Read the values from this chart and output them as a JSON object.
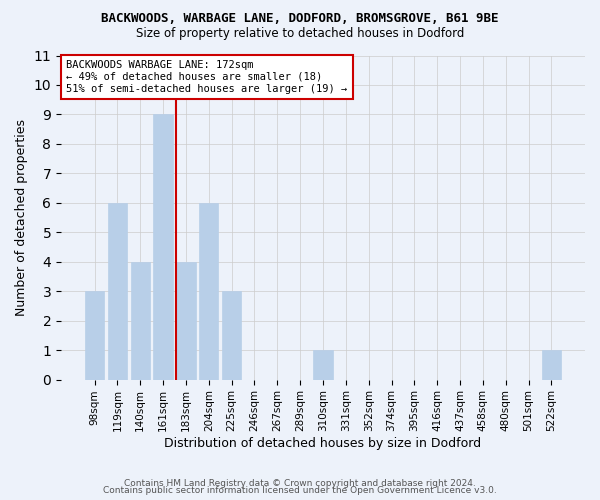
{
  "title_line1": "BACKWOODS, WARBAGE LANE, DODFORD, BROMSGROVE, B61 9BE",
  "title_line2": "Size of property relative to detached houses in Dodford",
  "xlabel": "Distribution of detached houses by size in Dodford",
  "ylabel": "Number of detached properties",
  "categories": [
    "98sqm",
    "119sqm",
    "140sqm",
    "161sqm",
    "183sqm",
    "204sqm",
    "225sqm",
    "246sqm",
    "267sqm",
    "289sqm",
    "310sqm",
    "331sqm",
    "352sqm",
    "374sqm",
    "395sqm",
    "416sqm",
    "437sqm",
    "458sqm",
    "480sqm",
    "501sqm",
    "522sqm"
  ],
  "values": [
    3,
    6,
    4,
    9,
    4,
    6,
    3,
    0,
    0,
    0,
    1,
    0,
    0,
    0,
    0,
    0,
    0,
    0,
    0,
    0,
    1
  ],
  "bar_color": "#b8cfe8",
  "bar_edge_color": "#b8cfe8",
  "property_line_x": 3.55,
  "property_line_color": "#cc0000",
  "annotation_text": "BACKWOODS WARBAGE LANE: 172sqm\n← 49% of detached houses are smaller (18)\n51% of semi-detached houses are larger (19) →",
  "annotation_box_color": "#ffffff",
  "annotation_box_edge": "#cc0000",
  "ylim": [
    0,
    11
  ],
  "yticks": [
    0,
    1,
    2,
    3,
    4,
    5,
    6,
    7,
    8,
    9,
    10,
    11
  ],
  "grid_color": "#cccccc",
  "background_color": "#edf2fa",
  "footer_line1": "Contains HM Land Registry data © Crown copyright and database right 2024.",
  "footer_line2": "Contains public sector information licensed under the Open Government Licence v3.0."
}
